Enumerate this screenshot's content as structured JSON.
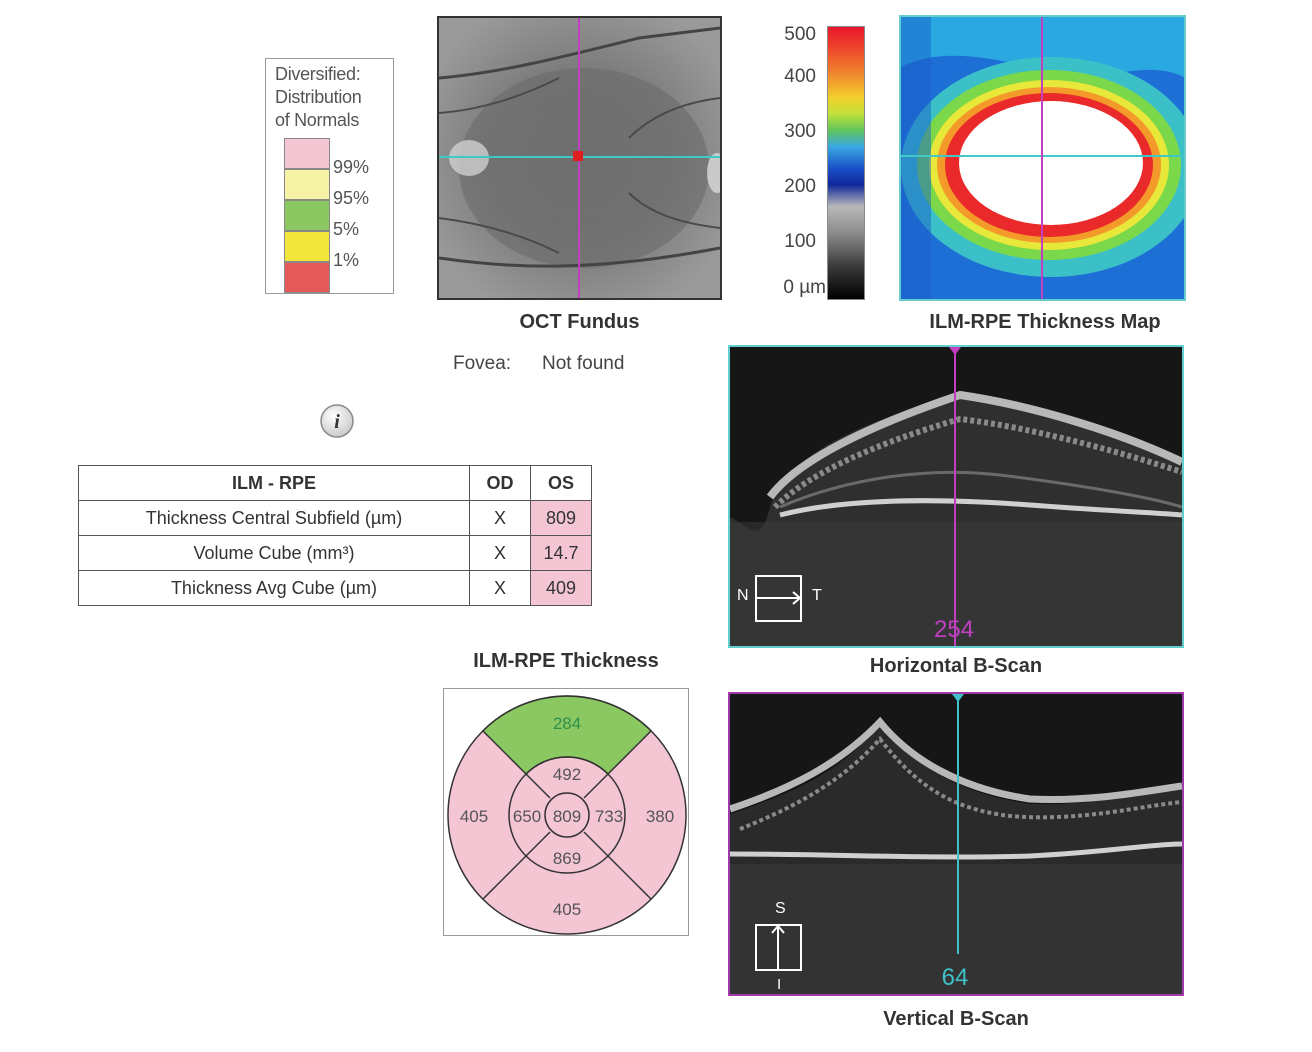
{
  "legend": {
    "title_lines": [
      "Diversified:",
      "Distribution",
      "of Normals"
    ],
    "items": [
      {
        "label": "99%",
        "color": "#f4c6d4"
      },
      {
        "label": "95%",
        "color": "#f7f3a6"
      },
      {
        "label": "5%",
        "color": "#8cc862"
      },
      {
        "label": "1%",
        "color": "#f2e63c"
      },
      {
        "label": "",
        "color": "#e45a5a"
      }
    ]
  },
  "fundus": {
    "caption": "OCT Fundus",
    "fovea_label": "Fovea:",
    "fovea_value": "Not found"
  },
  "colorbar": {
    "labels": [
      "500",
      "400",
      "300",
      "200",
      "100",
      "0 µm"
    ]
  },
  "thickness_map": {
    "caption": "ILM-RPE Thickness Map"
  },
  "table": {
    "header": [
      "ILM - RPE",
      "OD",
      "OS"
    ],
    "rows": [
      {
        "name": "Thickness Central Subfield (µm)",
        "od": "X",
        "os": "809"
      },
      {
        "name": "Volume Cube (mm³)",
        "od": "X",
        "os": "14.7"
      },
      {
        "name": "Thickness Avg Cube (µm)",
        "od": "X",
        "os": "409"
      }
    ]
  },
  "horizontal_scan": {
    "caption": "Horizontal B-Scan",
    "slice": "254",
    "left_letter": "N",
    "right_letter": "T"
  },
  "vertical_scan": {
    "caption": "Vertical B-Scan",
    "slice": "64",
    "top_letter": "S",
    "bottom_letter": "I"
  },
  "sector": {
    "title": "ILM-RPE Thickness",
    "outer_superior": "284",
    "outer_nasal": "405",
    "outer_temporal": "380",
    "outer_inferior": "405",
    "inner_superior": "492",
    "inner_nasal": "650",
    "inner_temporal": "733",
    "inner_inferior": "869",
    "center": "809",
    "colors": {
      "pink": "#f4c6d4",
      "green": "#8cc862",
      "green_text": "#2e8f4a"
    }
  },
  "colors": {
    "horizontal_marker": "#c040c0",
    "vertical_marker": "#40c0c8",
    "h_border": "#5fcfcf",
    "v_border": "#a03aa8"
  }
}
